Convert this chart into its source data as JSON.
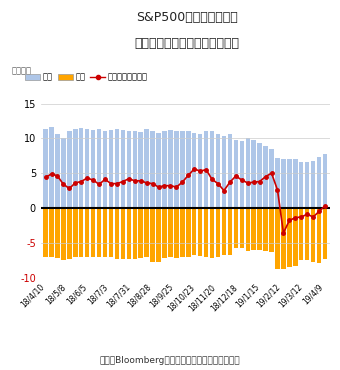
{
  "title1": "S&P500先物（統合）の",
  "title2": "建玉推移（非商業部門：投機）",
  "ylabel_unit": "（万枚）",
  "xlabel_labels": [
    "18/4/10",
    "18/5/8",
    "18/6/5",
    "18/7/3",
    "18/7/31",
    "18/8/28",
    "18/9/25",
    "18/10/23",
    "18/11/20",
    "18/12/18",
    "19/1/15",
    "19/2/12",
    "19/3/12",
    "19/4/9"
  ],
  "source_text": "出所：Bloombergのデータをもとに東洋証券作成",
  "ylim": [
    -10,
    15
  ],
  "yticks": [
    -10,
    -5,
    0,
    5,
    10,
    15
  ],
  "buy": [
    11.3,
    11.7,
    10.6,
    10.1,
    11.0,
    11.3,
    11.5,
    11.3,
    11.2,
    11.3,
    11.1,
    11.2,
    11.3,
    11.2,
    11.0,
    11.0,
    10.9,
    11.3,
    11.0,
    10.8,
    11.0,
    11.2,
    11.1,
    11.1,
    11.0,
    10.8,
    10.6,
    11.1,
    11.1,
    10.7,
    10.4,
    10.6,
    9.7,
    9.6,
    10.0,
    9.7,
    9.4,
    8.9,
    8.5,
    7.2,
    7.0,
    7.1,
    7.0,
    6.6,
    6.6,
    6.7,
    7.3,
    7.8
  ],
  "sell": [
    -7.1,
    -7.1,
    -7.2,
    -7.5,
    -7.4,
    -7.0,
    -7.1,
    -7.0,
    -7.1,
    -7.0,
    -7.1,
    -7.0,
    -7.3,
    -7.3,
    -7.4,
    -7.3,
    -7.2,
    -7.0,
    -7.7,
    -7.8,
    -7.2,
    -7.1,
    -7.2,
    -7.0,
    -7.0,
    -6.8,
    -6.9,
    -7.1,
    -7.2,
    -7.1,
    -6.7,
    -6.8,
    -5.7,
    -5.8,
    -6.2,
    -6.1,
    -6.0,
    -6.2,
    -6.4,
    -8.8,
    -8.8,
    -8.5,
    -8.4,
    -7.5,
    -7.5,
    -7.8,
    -7.9,
    -7.4
  ],
  "net": [
    4.4,
    4.9,
    4.6,
    3.4,
    2.8,
    3.6,
    3.8,
    4.3,
    4.0,
    3.4,
    4.1,
    3.5,
    3.5,
    3.8,
    4.2,
    3.9,
    3.9,
    3.6,
    3.5,
    3.0,
    3.2,
    3.2,
    3.0,
    3.7,
    4.7,
    5.6,
    5.3,
    5.5,
    4.1,
    3.5,
    2.5,
    3.7,
    4.6,
    4.0,
    3.6,
    3.7,
    3.8,
    4.5,
    5.0,
    2.6,
    -3.6,
    -1.8,
    -1.4,
    -1.3,
    -0.9,
    -1.3,
    -0.5,
    0.3
  ],
  "buy_color": "#aec6e8",
  "sell_color": "#ffa500",
  "net_color": "#cc0000",
  "bar_width": 0.75,
  "background_color": "#ffffff",
  "grid_color": "#cccccc",
  "zero_line_color": "#000000"
}
